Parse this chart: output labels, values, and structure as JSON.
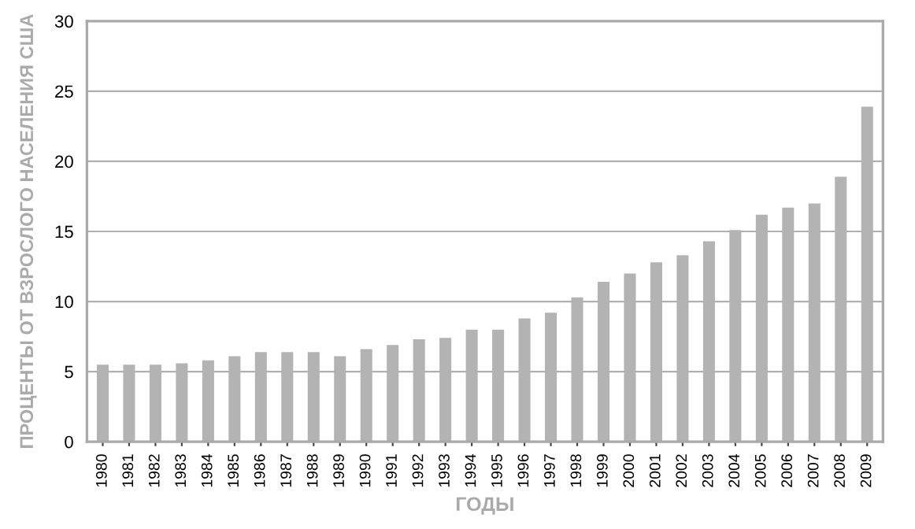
{
  "chart_data": {
    "type": "bar",
    "xlabel": "ГОДЫ",
    "ylabel": "ПРОЦЕНТЫ ОТ ВЗРОСЛОГО НАСЕЛЕНИЯ США",
    "categories": [
      "1980",
      "1981",
      "1982",
      "1983",
      "1984",
      "1985",
      "1986",
      "1987",
      "1988",
      "1989",
      "1990",
      "1991",
      "1992",
      "1993",
      "1994",
      "1995",
      "1996",
      "1997",
      "1998",
      "1999",
      "2000",
      "2001",
      "2002",
      "2003",
      "2004",
      "2005",
      "2006",
      "2007",
      "2008",
      "2009"
    ],
    "values": [
      5.5,
      5.5,
      5.5,
      5.6,
      5.8,
      6.1,
      6.4,
      6.4,
      6.4,
      6.1,
      6.6,
      6.9,
      7.3,
      7.4,
      8.0,
      8.0,
      8.8,
      9.2,
      10.3,
      11.4,
      12.0,
      12.8,
      13.3,
      14.3,
      15.1,
      16.2,
      16.7,
      17.0,
      18.9,
      23.9
    ],
    "color": "#b3b3b4",
    "ylim": [
      0,
      30
    ],
    "yticks": [
      0,
      5,
      10,
      15,
      20,
      25,
      30
    ],
    "grid": "y"
  }
}
